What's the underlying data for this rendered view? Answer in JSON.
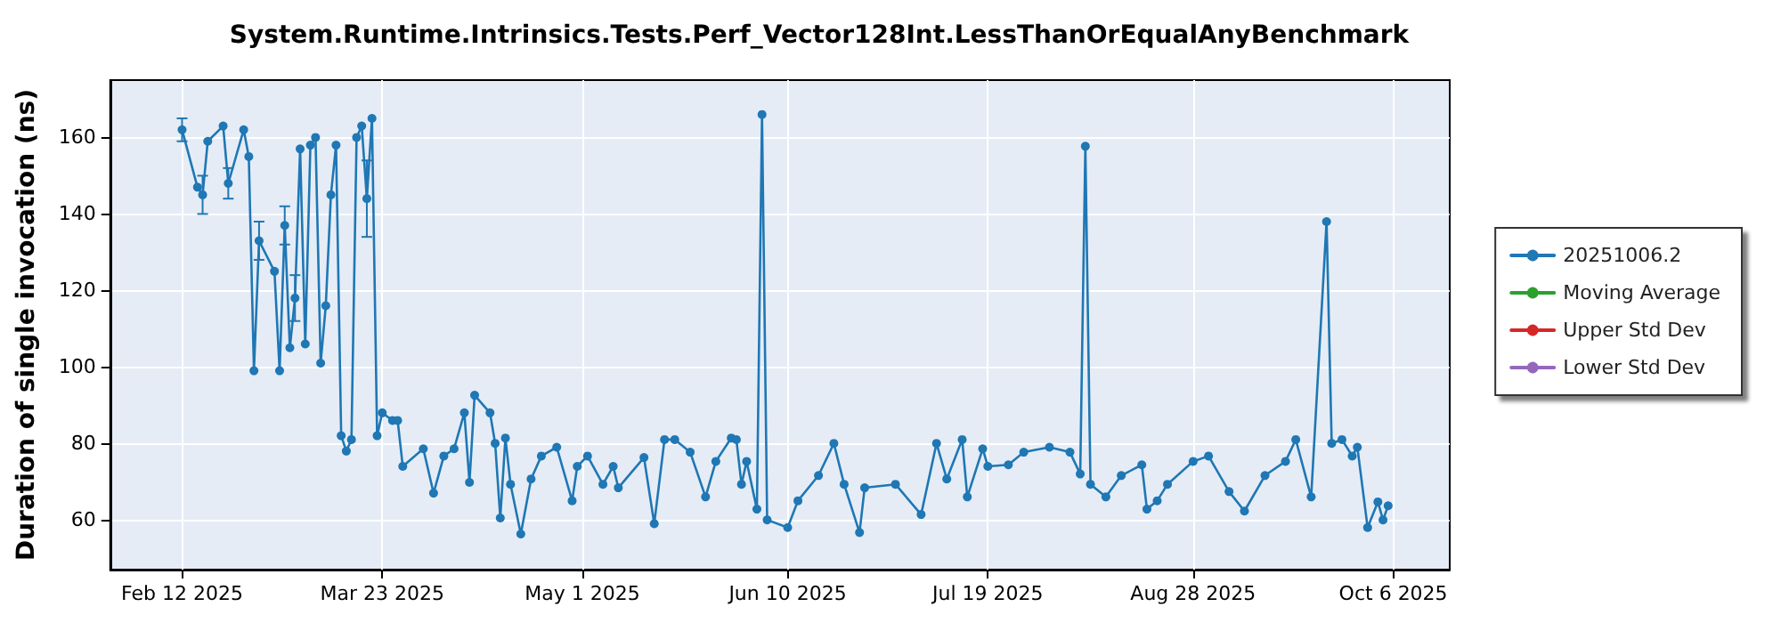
{
  "chart_data": {
    "type": "line",
    "title": "System.Runtime.Intrinsics.Tests.Perf_Vector128Int.LessThanOrEqualAnyBenchmark",
    "ylabel": "Duration of single invocation (ns)",
    "x": [
      "2025-02-12",
      "2025-02-15",
      "2025-02-16",
      "2025-02-17",
      "2025-02-20",
      "2025-02-21",
      "2025-02-24",
      "2025-02-25",
      "2025-02-26",
      "2025-02-27",
      "2025-03-02",
      "2025-03-03",
      "2025-03-04",
      "2025-03-05",
      "2025-03-06",
      "2025-03-07",
      "2025-03-08",
      "2025-03-09",
      "2025-03-10",
      "2025-03-11",
      "2025-03-12",
      "2025-03-13",
      "2025-03-14",
      "2025-03-15",
      "2025-03-16",
      "2025-03-17",
      "2025-03-18",
      "2025-03-19",
      "2025-03-20",
      "2025-03-21",
      "2025-03-22",
      "2025-03-23",
      "2025-03-25",
      "2025-03-26",
      "2025-03-27",
      "2025-03-31",
      "2025-04-02",
      "2025-04-04",
      "2025-04-06",
      "2025-04-08",
      "2025-04-09",
      "2025-04-10",
      "2025-04-13",
      "2025-04-14",
      "2025-04-15",
      "2025-04-16",
      "2025-04-17",
      "2025-04-19",
      "2025-04-21",
      "2025-04-23",
      "2025-04-26",
      "2025-04-29",
      "2025-04-30",
      "2025-05-02",
      "2025-05-05",
      "2025-05-07",
      "2025-05-08",
      "2025-05-13",
      "2025-05-15",
      "2025-05-17",
      "2025-05-19",
      "2025-05-22",
      "2025-05-25",
      "2025-05-27",
      "2025-05-30",
      "2025-05-31",
      "2025-06-01",
      "2025-06-02",
      "2025-06-04",
      "2025-06-05",
      "2025-06-06",
      "2025-06-10",
      "2025-06-12",
      "2025-06-16",
      "2025-06-19",
      "2025-06-21",
      "2025-06-24",
      "2025-06-25",
      "2025-07-01",
      "2025-07-06",
      "2025-07-09",
      "2025-07-11",
      "2025-07-14",
      "2025-07-15",
      "2025-07-18",
      "2025-07-19",
      "2025-07-23",
      "2025-07-26",
      "2025-07-31",
      "2025-08-04",
      "2025-08-06",
      "2025-08-07",
      "2025-08-08",
      "2025-08-11",
      "2025-08-14",
      "2025-08-18",
      "2025-08-19",
      "2025-08-21",
      "2025-08-23",
      "2025-08-28",
      "2025-08-31",
      "2025-09-04",
      "2025-09-07",
      "2025-09-11",
      "2025-09-15",
      "2025-09-17",
      "2025-09-20",
      "2025-09-23",
      "2025-09-24",
      "2025-09-26",
      "2025-09-28",
      "2025-09-29",
      "2025-10-01",
      "2025-10-03",
      "2025-10-04",
      "2025-10-05"
    ],
    "series": [
      {
        "name": "20251006.2",
        "color": "#1f77b4",
        "values": [
          162,
          147,
          145,
          159,
          163,
          148,
          162,
          155,
          99,
          133,
          125,
          99,
          137,
          105,
          118,
          157,
          106,
          158,
          160,
          101,
          116,
          145,
          158,
          82,
          78,
          81,
          160,
          163,
          144,
          165,
          82,
          88,
          86,
          86,
          74,
          78.6,
          67,
          76.7,
          78.6,
          88,
          69.8,
          92.6,
          88,
          80,
          60.5,
          81.4,
          69.3,
          56.3,
          70.7,
          76.7,
          79,
          65,
          74,
          76.7,
          69.3,
          74,
          68.4,
          76.3,
          59,
          81,
          81,
          77.7,
          66,
          75.3,
          81.4,
          81,
          69.3,
          75.3,
          62.8,
          166,
          60,
          58,
          65,
          71.6,
          80,
          69.3,
          56.7,
          68.4,
          69.3,
          61.4,
          80,
          70.7,
          81,
          66,
          78.6,
          74,
          74.4,
          77.7,
          79,
          77.7,
          72,
          157.7,
          69.3,
          66,
          71.6,
          74.4,
          62.8,
          65,
          69.3,
          75.3,
          76.7,
          67.4,
          62.3,
          71.6,
          75.3,
          81,
          66,
          138,
          80,
          81,
          76.7,
          79,
          58,
          64.7,
          60,
          63.7
        ],
        "errors": [
          3,
          null,
          5,
          null,
          null,
          4,
          null,
          null,
          null,
          5,
          null,
          null,
          5,
          null,
          6,
          null,
          null,
          null,
          null,
          null,
          null,
          null,
          null,
          null,
          null,
          null,
          null,
          null,
          10,
          null,
          null,
          null,
          null,
          null,
          null,
          null,
          null,
          null,
          null,
          null,
          null,
          null,
          null,
          null,
          null,
          null,
          null,
          null,
          null,
          null,
          null,
          null,
          null,
          null,
          null,
          null,
          null,
          null,
          null,
          null,
          null,
          null,
          null,
          null,
          null,
          null,
          null,
          null,
          null,
          null,
          null,
          null,
          null,
          null,
          null,
          null,
          null,
          null,
          null,
          null,
          null,
          null,
          null,
          null,
          null,
          null,
          null,
          null,
          null,
          null,
          null,
          null,
          null,
          null,
          null,
          null,
          null,
          null,
          null,
          null,
          null,
          null,
          null,
          null,
          null,
          null,
          null,
          null,
          null,
          null,
          null,
          null,
          null,
          null,
          null,
          null
        ]
      },
      {
        "name": "Moving Average",
        "color": "#2ca02c",
        "values": [
          null,
          null,
          null,
          null,
          null,
          null,
          null,
          null,
          null,
          null,
          null,
          null,
          null,
          null,
          null,
          null,
          null,
          null,
          null,
          null,
          null,
          null,
          null,
          null,
          null,
          null,
          null,
          null,
          null,
          null,
          null,
          null,
          null,
          null,
          null,
          null,
          null,
          null,
          null,
          null,
          null,
          null,
          null,
          null,
          null,
          null,
          null,
          null,
          null,
          null,
          null,
          null,
          null,
          null,
          null,
          null,
          null,
          null,
          null,
          null,
          null,
          null,
          null,
          null,
          null,
          null,
          null,
          null,
          null,
          null,
          null,
          null,
          null,
          null,
          null,
          null,
          null,
          null,
          null,
          null,
          null,
          null,
          null,
          null,
          null,
          null,
          null,
          null,
          null,
          null,
          null,
          null,
          null,
          null,
          null,
          null,
          null,
          null,
          null,
          null,
          null,
          null,
          null,
          null,
          null,
          null,
          null,
          null,
          null,
          null,
          null,
          null,
          null,
          null,
          null,
          null
        ]
      },
      {
        "name": "Upper Std Dev",
        "color": "#d62728",
        "values": [
          null,
          null,
          null,
          null,
          null,
          null,
          null,
          null,
          null,
          null,
          null,
          null,
          null,
          null,
          null,
          null,
          null,
          null,
          null,
          null,
          null,
          null,
          null,
          null,
          null,
          null,
          null,
          null,
          null,
          null,
          null,
          null,
          null,
          null,
          null,
          null,
          null,
          null,
          null,
          null,
          null,
          null,
          null,
          null,
          null,
          null,
          null,
          null,
          null,
          null,
          null,
          null,
          null,
          null,
          null,
          null,
          null,
          null,
          null,
          null,
          null,
          null,
          null,
          null,
          null,
          null,
          null,
          null,
          null,
          null,
          null,
          null,
          null,
          null,
          null,
          null,
          null,
          null,
          null,
          null,
          null,
          null,
          null,
          null,
          null,
          null,
          null,
          null,
          null,
          null,
          null,
          null,
          null,
          null,
          null,
          null,
          null,
          null,
          null,
          null,
          null,
          null,
          null,
          null,
          null,
          null,
          null,
          null,
          null,
          null,
          null,
          null,
          null,
          null,
          null,
          null
        ]
      },
      {
        "name": "Lower Std Dev",
        "color": "#9467bd",
        "values": [
          null,
          null,
          null,
          null,
          null,
          null,
          null,
          null,
          null,
          null,
          null,
          null,
          null,
          null,
          null,
          null,
          null,
          null,
          null,
          null,
          null,
          null,
          null,
          null,
          null,
          null,
          null,
          null,
          null,
          null,
          null,
          null,
          null,
          null,
          null,
          null,
          null,
          null,
          null,
          null,
          null,
          null,
          null,
          null,
          null,
          null,
          null,
          null,
          null,
          null,
          null,
          null,
          null,
          null,
          null,
          null,
          null,
          null,
          null,
          null,
          null,
          null,
          null,
          null,
          null,
          null,
          null,
          null,
          null,
          null,
          null,
          null,
          null,
          null,
          null,
          null,
          null,
          null,
          null,
          null,
          null,
          null,
          null,
          null,
          null,
          null,
          null,
          null,
          null,
          null,
          null,
          null,
          null,
          null,
          null,
          null,
          null,
          null,
          null,
          null,
          null,
          null,
          null,
          null,
          null,
          null,
          null,
          null,
          null,
          null,
          null,
          null,
          null,
          null,
          null,
          null
        ]
      }
    ],
    "xlim": [
      "2025-01-29",
      "2025-10-17"
    ],
    "xticks": [
      {
        "value": "2025-02-12",
        "label": "Feb 12 2025"
      },
      {
        "value": "2025-03-23",
        "label": "Mar 23 2025"
      },
      {
        "value": "2025-05-01",
        "label": "May 1 2025"
      },
      {
        "value": "2025-06-10",
        "label": "Jun 10 2025"
      },
      {
        "value": "2025-07-19",
        "label": "Jul 19 2025"
      },
      {
        "value": "2025-08-28",
        "label": "Aug 28 2025"
      },
      {
        "value": "2025-10-06",
        "label": "Oct 6 2025"
      }
    ],
    "ylim": [
      47,
      175
    ],
    "yticks": [
      60,
      80,
      100,
      120,
      140,
      160
    ],
    "grid": true,
    "legend": "right",
    "marker": "circle",
    "line_style": "solid"
  }
}
